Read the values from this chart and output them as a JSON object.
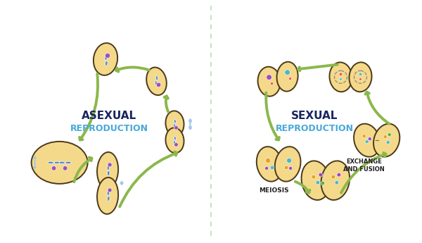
{
  "bg_color": "#ffffff",
  "divider_color": "#b8ddb8",
  "cell_fill": "#f5d98a",
  "cell_edge": "#4a3a1a",
  "arrow_color": "#8ab84a",
  "double_arrow_color": "#a0c8e8",
  "chrom_color": "#5b8ec4",
  "nucleus_color": "#9b4fbc",
  "nucleus_color2": "#e85050",
  "dot_cyan": "#4ab8c8",
  "dot_orange": "#e8a020",
  "dot_green": "#48b848",
  "dot_purple": "#9848c8",
  "dot_red": "#d84848",
  "label_color": "#222222",
  "title_dark": "#1a2560",
  "title_blue": "#48a8d8",
  "asexual_title": "ASEXUAL",
  "asexual_sub": "REPRODUCTION",
  "sexual_title": "SEXUAL",
  "sexual_sub": "REPRODUCTION",
  "meiosis_label": "MEIOSIS",
  "exchange_label": "EXCHANGE\nAND FUSION"
}
